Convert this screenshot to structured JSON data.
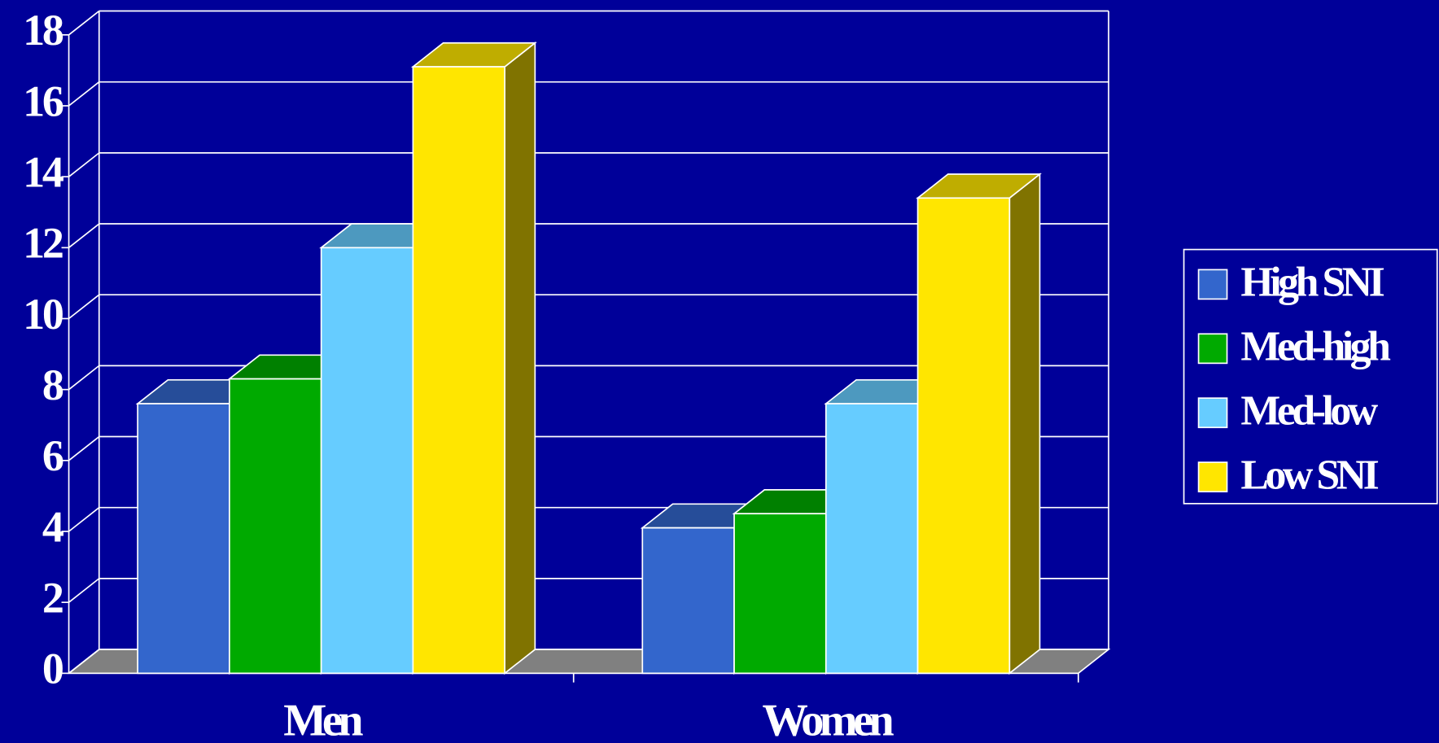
{
  "chart_data": {
    "type": "bar3d",
    "categories": [
      "Men",
      "Women"
    ],
    "series": [
      {
        "name": "High SNI",
        "color": "#3366cc",
        "values": [
          7.6,
          4.1
        ]
      },
      {
        "name": "Med-high",
        "color": "#00aa00",
        "values": [
          8.3,
          4.5
        ]
      },
      {
        "name": "Med-low",
        "color": "#66ccff",
        "values": [
          12,
          7.6
        ]
      },
      {
        "name": "Low SNI",
        "color": "#ffe600",
        "values": [
          17.1,
          13.4
        ]
      }
    ],
    "ylim": [
      0,
      18
    ],
    "yticks": [
      0,
      2,
      4,
      6,
      8,
      10,
      12,
      14,
      16,
      18
    ],
    "grid": true,
    "legend": "right"
  }
}
